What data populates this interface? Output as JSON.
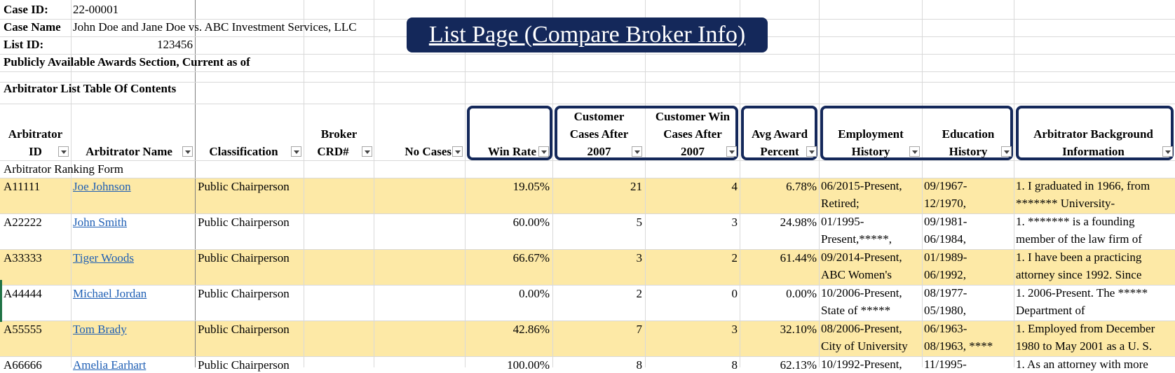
{
  "banner": "List Page (Compare Broker Info)",
  "info": {
    "case_id_label": "Case ID:",
    "case_id_value": "22-00001",
    "case_name_label": "Case Name",
    "case_name_value": "John Doe and Jane Doe vs. ABC Investment Services, LLC",
    "list_id_label": "List ID:",
    "list_id_value": "123456",
    "awards_line": "Publicly Available Awards Section, Current as of",
    "toc_line": "Arbitrator List Table Of Contents"
  },
  "headers": {
    "arbitrator_id_1": "Arbitrator",
    "arbitrator_id_2": "ID",
    "arbitrator_name": "Arbitrator Name",
    "classification": "Classification",
    "broker_1": "Broker",
    "broker_2": "CRD#",
    "no_cases": "No Cases",
    "win_rate": "Win Rate",
    "cust_cases_1": "Customer",
    "cust_cases_2": "Cases After",
    "cust_cases_3": "2007",
    "cust_win_1": "Customer Win",
    "cust_win_2": "Cases After",
    "cust_win_3": "2007",
    "avg_award_1": "Avg Award",
    "avg_award_2": "Percent",
    "employment_1": "Employment",
    "employment_2": "History",
    "education_1": "Education",
    "education_2": "History",
    "background_1": "Arbitrator Background",
    "background_2": "Information"
  },
  "ranking_form_label": "Arbitrator Ranking Form",
  "rows": [
    {
      "id": "A11111",
      "name": "Joe Johnson",
      "classification": "Public Chairperson",
      "win_rate": "19.05%",
      "cust_cases": "21",
      "cust_win": "4",
      "avg_award": "6.78%",
      "emp_1": "06/2015-Present,",
      "emp_2": "Retired;",
      "edu_1": "09/1967-",
      "edu_2": "12/1970,",
      "bg_1": "1. I graduated in 1966, from",
      "bg_2": "******* University-"
    },
    {
      "id": "A22222",
      "name": "John Smith",
      "classification": "Public Chairperson",
      "win_rate": "60.00%",
      "cust_cases": "5",
      "cust_win": "3",
      "avg_award": "24.98%",
      "emp_1": "01/1995-",
      "emp_2": "Present,*****,",
      "edu_1": "09/1981-",
      "edu_2": "06/1984,",
      "bg_1": "1. ******* is a founding",
      "bg_2": "member of the law firm of"
    },
    {
      "id": "A33333",
      "name": "Tiger Woods",
      "classification": "Public Chairperson",
      "win_rate": "66.67%",
      "cust_cases": "3",
      "cust_win": "2",
      "avg_award": "61.44%",
      "emp_1": "09/2014-Present,",
      "emp_2": "ABC Women's",
      "edu_1": "01/1989-",
      "edu_2": "06/1992,",
      "bg_1": "1. I have been a practicing",
      "bg_2": "attorney since 1992. Since"
    },
    {
      "id": "A44444",
      "name": "Michael Jordan",
      "classification": "Public Chairperson",
      "win_rate": "0.00%",
      "cust_cases": "2",
      "cust_win": "0",
      "avg_award": "0.00%",
      "emp_1": "10/2006-Present,",
      "emp_2": "State of *****",
      "edu_1": "08/1977-",
      "edu_2": "05/1980,",
      "bg_1": "1. 2006-Present. The *****",
      "bg_2": "Department of"
    },
    {
      "id": "A55555",
      "name": "Tom Brady",
      "classification": "Public Chairperson",
      "win_rate": "42.86%",
      "cust_cases": "7",
      "cust_win": "3",
      "avg_award": "32.10%",
      "emp_1": "08/2006-Present,",
      "emp_2": "City of University",
      "edu_1": "06/1963-",
      "edu_2": "08/1963, ****",
      "bg_1": "1. Employed from December",
      "bg_2": "1980 to May 2001 as a U. S."
    },
    {
      "id": "A66666",
      "name": "Amelia Earhart",
      "classification": "Public Chairperson",
      "win_rate": "100.00%",
      "cust_cases": "8",
      "cust_win": "8",
      "avg_award": "62.13%",
      "emp_1": "10/1992-Present,",
      "emp_2": "",
      "edu_1": "11/1995-",
      "edu_2": "",
      "bg_1": "1. As an attorney with more",
      "bg_2": ""
    }
  ]
}
